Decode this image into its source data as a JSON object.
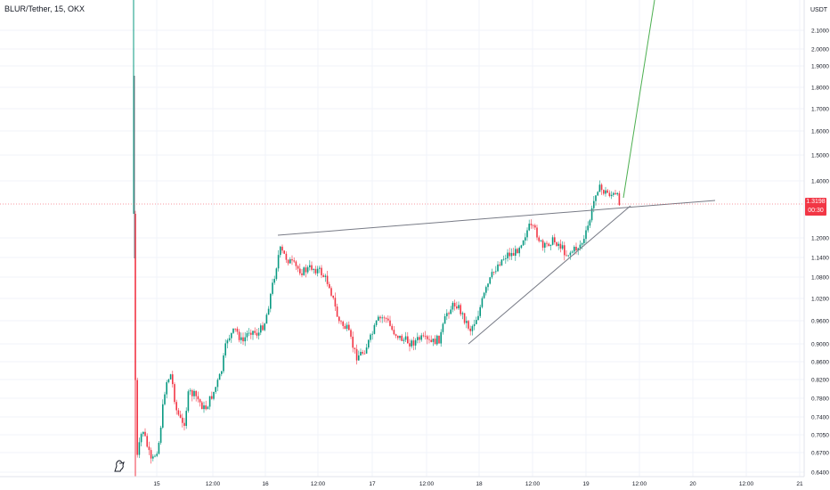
{
  "chart_data": {
    "type": "candlestick",
    "title": "BLUR/Tether, 15, OKX",
    "currency_label": "USDT",
    "ylim": [
      0.64,
      2.2
    ],
    "y_ticks": [
      "2.1000",
      "2.0000",
      "1.9000",
      "1.8000",
      "1.7000",
      "1.6000",
      "1.5000",
      "1.4000",
      "1.2000",
      "1.1400",
      "1.0800",
      "1.0200",
      "0.9600",
      "0.9000",
      "0.8600",
      "0.8200",
      "0.7800",
      "0.7400",
      "0.7050",
      "0.6700",
      "0.6400"
    ],
    "x_ticks": [
      "15",
      "12:00",
      "16",
      "12:00",
      "17",
      "12:00",
      "18",
      "12:00",
      "19",
      "12:00",
      "20",
      "12:00",
      "21"
    ],
    "last_price": "1.3198",
    "countdown": "00:30",
    "colors": {
      "up": "#089981",
      "down": "#f23645",
      "neutral_line": "#787b86",
      "projection": "#4caf50"
    },
    "logo_icon": "tradingview-logo-icon"
  }
}
